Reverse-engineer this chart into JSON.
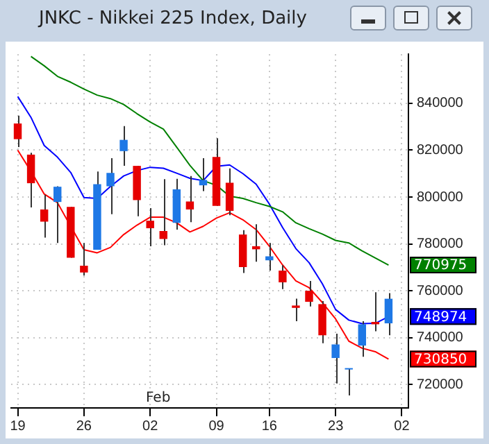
{
  "chart_data": {
    "type": "candlestick",
    "title": "JNKC - Nikkei 225 Index, Daily",
    "categories": [
      "19",
      null,
      null,
      null,
      null,
      "26",
      null,
      null,
      null,
      null,
      "02",
      null,
      null,
      null,
      null,
      "09",
      null,
      null,
      null,
      "16",
      null,
      null,
      null,
      null,
      "23",
      null,
      null,
      null,
      null,
      "02"
    ],
    "ohlc": [
      [
        831400,
        834700,
        821300,
        824700
      ],
      [
        818100,
        818900,
        795600,
        805900
      ],
      [
        794700,
        801000,
        782700,
        789500
      ],
      [
        797900,
        804600,
        780400,
        804400
      ],
      [
        795800,
        795800,
        774100,
        774100
      ],
      [
        770700,
        780400,
        766500,
        767800
      ],
      [
        777500,
        810900,
        777500,
        805500
      ],
      [
        804600,
        816600,
        792700,
        810300
      ],
      [
        819600,
        830300,
        813300,
        824400
      ],
      [
        813300,
        813300,
        791800,
        798700
      ],
      [
        789900,
        795300,
        779000,
        786700
      ],
      [
        785500,
        807600,
        779400,
        782100
      ],
      [
        789000,
        807800,
        786100,
        803300
      ],
      [
        798100,
        809000,
        789300,
        794700
      ],
      [
        805000,
        816600,
        802500,
        807300
      ],
      [
        817100,
        825100,
        796200,
        796200
      ],
      [
        806100,
        812200,
        792200,
        794100
      ],
      [
        784000,
        785900,
        767600,
        770100
      ],
      [
        779000,
        788400,
        772400,
        777700
      ],
      [
        773000,
        780400,
        768600,
        774700
      ],
      [
        768600,
        770900,
        760700,
        763600
      ],
      [
        753700,
        756600,
        747000,
        752700
      ],
      [
        760000,
        764200,
        753300,
        755300
      ],
      [
        754300,
        755600,
        737600,
        741000
      ],
      [
        731300,
        741700,
        720400,
        737100
      ],
      [
        726400,
        726900,
        715300,
        726900
      ],
      [
        736600,
        747000,
        731800,
        745700
      ],
      [
        746700,
        759400,
        742700,
        745700
      ],
      [
        746100,
        759000,
        741000,
        756600
      ],
      null
    ],
    "colors": [
      "#e60000",
      "#e60000",
      "#e60000",
      "#1e78e6",
      "#e60000",
      "#e60000",
      "#1e78e6",
      "#1e78e6",
      "#1e78e6",
      "#e60000",
      "#e60000",
      "#e60000",
      "#1e78e6",
      "#e60000",
      "#1e78e6",
      "#e60000",
      "#e60000",
      "#e60000",
      "#e60000",
      "#1e78e6",
      "#e60000",
      "#e60000",
      "#e60000",
      "#e60000",
      "#1e78e6",
      "#1e78e6",
      "#1e78e6",
      "#e60000",
      "#1e78e6",
      null
    ],
    "series": [
      {
        "type": "line",
        "color": "#008000",
        "values": [
          null,
          860000,
          856000,
          851500,
          849000,
          846100,
          843500,
          842000,
          839500,
          835600,
          832000,
          829000,
          821300,
          813500,
          807000,
          805000,
          800400,
          799400,
          797600,
          796000,
          793700,
          789000,
          786500,
          784200,
          781500,
          780400,
          777000,
          774000,
          770975,
          null
        ],
        "value_labels": [
          null,
          null,
          null,
          null,
          null,
          null,
          null,
          null,
          null,
          null,
          null,
          null,
          null,
          null,
          null,
          null,
          null,
          null,
          null,
          null,
          null,
          null,
          null,
          null,
          null,
          null,
          null,
          null,
          "770975",
          null
        ]
      },
      {
        "type": "line",
        "color": "#0000ff",
        "values": [
          842900,
          834000,
          822000,
          817000,
          810500,
          799800,
          799400,
          804500,
          809000,
          811300,
          812700,
          812300,
          810200,
          808000,
          807000,
          813100,
          813700,
          810000,
          805500,
          797000,
          787000,
          778000,
          772000,
          763000,
          752000,
          747500,
          746000,
          746100,
          748974,
          null
        ],
        "value_labels": [
          null,
          null,
          null,
          null,
          null,
          null,
          null,
          null,
          null,
          null,
          null,
          null,
          null,
          null,
          null,
          null,
          null,
          null,
          null,
          null,
          null,
          null,
          null,
          null,
          null,
          null,
          null,
          null,
          "748974",
          null
        ]
      },
      {
        "type": "line",
        "color": "#ff0000",
        "values": [
          820000,
          811000,
          801300,
          797600,
          787500,
          777500,
          776200,
          778500,
          784000,
          788000,
          791400,
          791400,
          789000,
          785100,
          787500,
          791000,
          793300,
          790300,
          786100,
          779000,
          771000,
          764200,
          761300,
          755000,
          748000,
          738500,
          735500,
          734000,
          730850,
          null
        ],
        "value_labels": [
          null,
          null,
          null,
          null,
          null,
          null,
          null,
          null,
          null,
          null,
          null,
          null,
          null,
          null,
          null,
          null,
          null,
          null,
          null,
          null,
          null,
          null,
          null,
          null,
          null,
          null,
          null,
          null,
          "730850",
          null
        ]
      }
    ],
    "ylim": [
      710000,
      861000
    ],
    "yticks": [
      720000,
      740000,
      760000,
      780000,
      800000,
      820000,
      840000
    ],
    "grid": true,
    "marker": "none",
    "annotations": [
      "Feb"
    ]
  }
}
